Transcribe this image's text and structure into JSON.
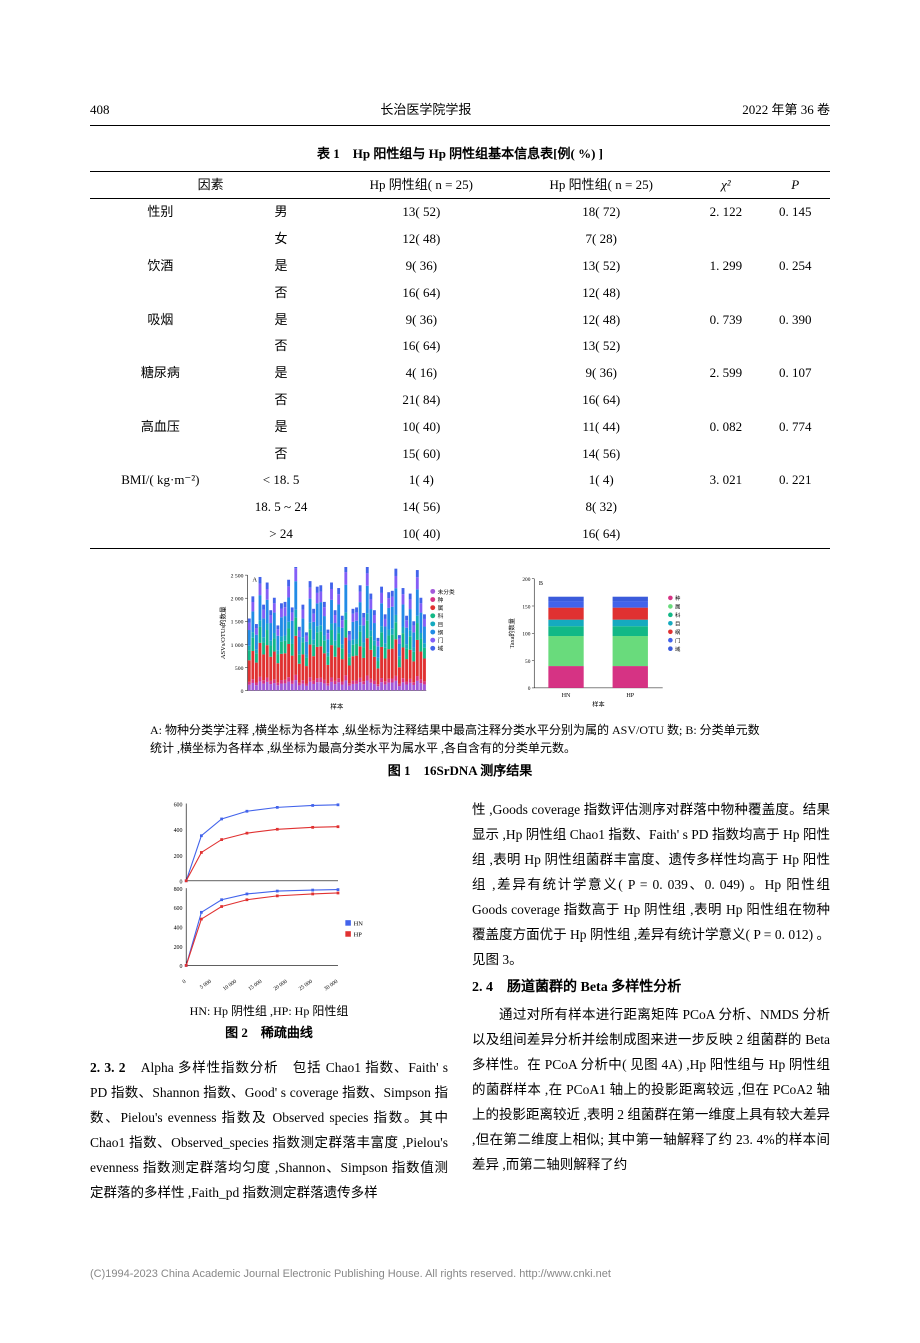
{
  "header": {
    "page": "408",
    "journal": "长治医学院学报",
    "issue": "2022 年第 36 卷"
  },
  "table1": {
    "title": "表 1　Hp 阳性组与 Hp 阴性组基本信息表[例( %) ]",
    "columns": [
      "因素",
      "",
      "Hp 阴性组( n = 25)",
      "Hp 阳性组( n = 25)",
      "χ²",
      "P"
    ],
    "rows": [
      {
        "factor": "性别",
        "sub": "男",
        "neg": "13( 52)",
        "pos": "18( 72)",
        "chi": "2. 122",
        "p": "0. 145"
      },
      {
        "factor": "",
        "sub": "女",
        "neg": "12( 48)",
        "pos": "7( 28)",
        "chi": "",
        "p": ""
      },
      {
        "factor": "饮酒",
        "sub": "是",
        "neg": "9( 36)",
        "pos": "13( 52)",
        "chi": "1. 299",
        "p": "0. 254"
      },
      {
        "factor": "",
        "sub": "否",
        "neg": "16( 64)",
        "pos": "12( 48)",
        "chi": "",
        "p": ""
      },
      {
        "factor": "吸烟",
        "sub": "是",
        "neg": "9( 36)",
        "pos": "12( 48)",
        "chi": "0. 739",
        "p": "0. 390"
      },
      {
        "factor": "",
        "sub": "否",
        "neg": "16( 64)",
        "pos": "13( 52)",
        "chi": "",
        "p": ""
      },
      {
        "factor": "糖尿病",
        "sub": "是",
        "neg": "4( 16)",
        "pos": "9( 36)",
        "chi": "2. 599",
        "p": "0. 107"
      },
      {
        "factor": "",
        "sub": "否",
        "neg": "21( 84)",
        "pos": "16( 64)",
        "chi": "",
        "p": ""
      },
      {
        "factor": "高血压",
        "sub": "是",
        "neg": "10( 40)",
        "pos": "11( 44)",
        "chi": "0. 082",
        "p": "0. 774"
      },
      {
        "factor": "",
        "sub": "否",
        "neg": "15( 60)",
        "pos": "14( 56)",
        "chi": "",
        "p": ""
      },
      {
        "factor": "BMI/( kg·m⁻²)",
        "sub": "< 18. 5",
        "neg": "1( 4)",
        "pos": "1( 4)",
        "chi": "3. 021",
        "p": "0. 221"
      },
      {
        "factor": "",
        "sub": "18. 5 ~ 24",
        "neg": "14( 56)",
        "pos": "8( 32)",
        "chi": "",
        "p": ""
      },
      {
        "factor": "",
        "sub": "> 24",
        "neg": "10( 40)",
        "pos": "16( 64)",
        "chi": "",
        "p": ""
      }
    ]
  },
  "fig1": {
    "caption": "A: 物种分类学注释 ,横坐标为各样本 ,纵坐标为注释结果中最高注释分类水平分别为属的 ASV/OTU 数; B: 分类单元数统计 ,横坐标为各样本 ,纵坐标为最高分类水平为属水平 ,各自含有的分类单元数。",
    "label": "图 1　16SrDNA 测序结果",
    "chartA": {
      "type": "stacked-bar",
      "label": "A",
      "ylabel": "ASVs/OTUs的数量",
      "xlabel": "样本",
      "ylim": [
        0,
        2500
      ],
      "ytick": 500,
      "legend": [
        "未分类",
        "种",
        "属",
        "科",
        "目",
        "纲",
        "门",
        "域"
      ],
      "legend_colors": [
        "#a259d9",
        "#d63384",
        "#e03131",
        "#12b886",
        "#15aabf",
        "#228be6",
        "#845ef7",
        "#4263eb"
      ],
      "n_samples": 50,
      "background": "#ffffff"
    },
    "chartB": {
      "type": "stacked-bar",
      "label": "B",
      "ylabel": "Taxa的数量",
      "xlabel": "样本",
      "ylim": [
        0,
        200
      ],
      "ytick": 50,
      "categories": [
        "HN",
        "HP"
      ],
      "legend": [
        "种",
        "属",
        "科",
        "目",
        "纲",
        "门",
        "域"
      ],
      "legend_colors": [
        "#d63384",
        "#69db7c",
        "#12b886",
        "#15aabf",
        "#e03131",
        "#4263eb",
        "#3b5bdb"
      ],
      "stacks": {
        "HN": [
          40,
          55,
          18,
          12,
          22,
          12,
          8
        ],
        "HP": [
          40,
          55,
          18,
          12,
          22,
          12,
          8
        ]
      },
      "background": "#ffffff"
    }
  },
  "fig2": {
    "sub": "HN: Hp 阴性组 ,HP: Hp 阳性组",
    "label": "图 2　稀疏曲线",
    "chart": {
      "type": "line",
      "xlim": [
        0,
        30000
      ],
      "xtick": 5000,
      "ylim_upper": [
        0,
        600
      ],
      "ytick_upper": 200,
      "ylim_lower": [
        0,
        800
      ],
      "ytick_lower": 200,
      "series": [
        {
          "name": "HN",
          "color": "#4263eb",
          "marker": "square"
        },
        {
          "name": "HP",
          "color": "#e03131",
          "marker": "square"
        }
      ],
      "hn_upper": [
        [
          0,
          0
        ],
        [
          3000,
          350
        ],
        [
          7000,
          480
        ],
        [
          12000,
          540
        ],
        [
          18000,
          570
        ],
        [
          25000,
          585
        ],
        [
          30000,
          590
        ]
      ],
      "hp_upper": [
        [
          0,
          0
        ],
        [
          3000,
          220
        ],
        [
          7000,
          320
        ],
        [
          12000,
          370
        ],
        [
          18000,
          400
        ],
        [
          25000,
          415
        ],
        [
          30000,
          420
        ]
      ],
      "hn_lower": [
        [
          0,
          0
        ],
        [
          3000,
          550
        ],
        [
          7000,
          680
        ],
        [
          12000,
          740
        ],
        [
          18000,
          770
        ],
        [
          25000,
          780
        ],
        [
          30000,
          785
        ]
      ],
      "hp_lower": [
        [
          0,
          0
        ],
        [
          3000,
          480
        ],
        [
          7000,
          610
        ],
        [
          12000,
          680
        ],
        [
          18000,
          720
        ],
        [
          25000,
          740
        ],
        [
          30000,
          750
        ]
      ]
    }
  },
  "text": {
    "left_p1_head": "2. 3. 2",
    "left_p1": "　Alpha 多样性指数分析　包括 Chao1 指数、Faith' s PD 指数、Shannon 指数、Good' s coverage 指数、Simpson 指数、Pielou's evenness 指数及 Observed species 指数。其中 Chao1 指数、Observed_species 指数测定群落丰富度 ,Pielou's evenness 指数测定群落均匀度 ,Shannon、Simpson 指数值测定群落的多样性 ,Faith_pd 指数测定群落遗传多样",
    "right_p1": "性 ,Goods coverage 指数评估测序对群落中物种覆盖度。结果显示 ,Hp 阴性组 Chao1 指数、Faith' s PD 指数均高于 Hp 阳性组 ,表明 Hp 阴性组菌群丰富度、遗传多样性均高于 Hp 阳性组 ,差异有统计学意义( P = 0. 039、0. 049) 。Hp 阳性组 Goods coverage 指数高于 Hp 阴性组 ,表明 Hp 阳性组在物种覆盖度方面优于 Hp 阴性组 ,差异有统计学意义( P = 0. 012) 。见图 3。",
    "right_head": "2. 4　肠道菌群的 Beta 多样性分析",
    "right_p2": "通过对所有样本进行距离矩阵 PCoA 分析、NMDS 分析以及组间差异分析并绘制成图来进一步反映 2 组菌群的 Beta 多样性。在 PCoA 分析中( 见图 4A) ,Hp 阳性组与 Hp 阴性组的菌群样本 ,在 PCoA1 轴上的投影距离较远 ,但在 PCoA2 轴上的投影距离较近 ,表明 2 组菌群在第一维度上具有较大差异 ,但在第二维度上相似; 其中第一轴解释了约 23. 4%的样本间差异 ,而第二轴则解释了约"
  },
  "footer": "(C)1994-2023 China Academic Journal Electronic Publishing House. All rights reserved.    http://www.cnki.net"
}
